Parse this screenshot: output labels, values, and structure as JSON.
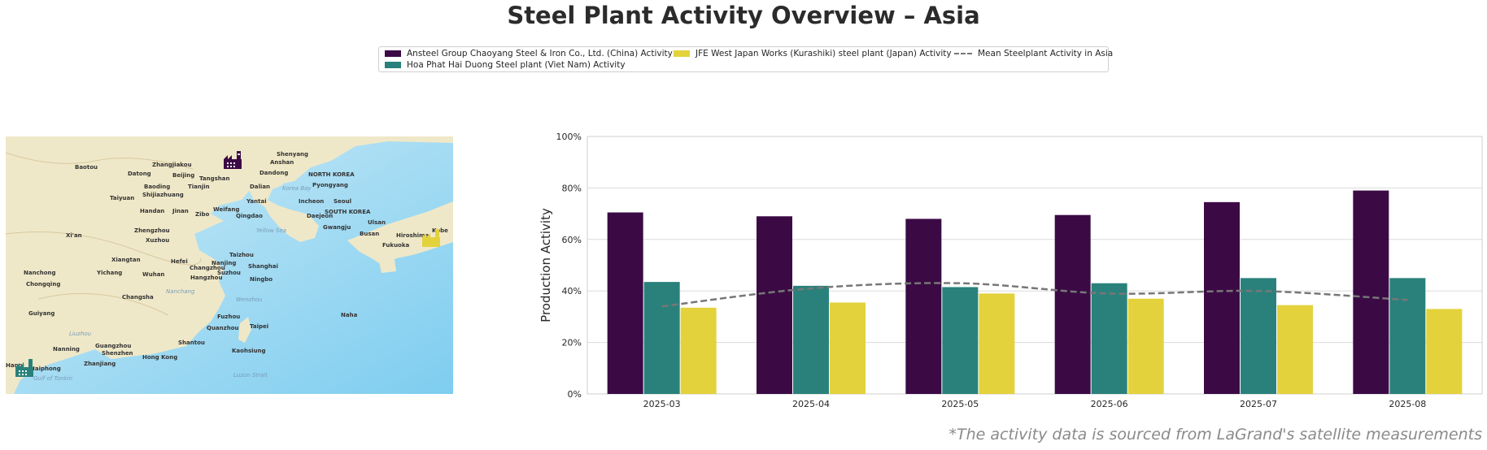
{
  "title": "Steel Plant Activity Overview – Asia",
  "legend": {
    "items": [
      {
        "label": "Ansteel Group Chaoyang Steel & Iron Co., Ltd. (China) Activity",
        "color": "#3b0a45",
        "kind": "bar"
      },
      {
        "label": "Hoa Phat Hai Duong Steel plant (Viet Nam) Activity",
        "color": "#2a817b",
        "kind": "bar"
      },
      {
        "label": "JFE West Japan Works (Kurashiki) steel plant (Japan) Activity",
        "color": "#e3d23c",
        "kind": "bar"
      },
      {
        "label": "Mean Steelplant Activity in Asia",
        "color": "#777777",
        "kind": "dashed-line"
      }
    ]
  },
  "map": {
    "labels": [
      "Baotou",
      "Zhangjiakou",
      "Datong",
      "Beijing",
      "Tangshan",
      "Shenyang",
      "Anshan",
      "Dandong",
      "NORTH KOREA",
      "Baoding",
      "Shijiazhuang",
      "Tianjin",
      "Dalian",
      "Pyongyang",
      "Taiyuan",
      "Korea Bay",
      "Yantai",
      "Incheon",
      "Seoul",
      "SOUTH KOREA",
      "Handan",
      "Jinan",
      "Zibo",
      "Weifang",
      "Qingdao",
      "Daejeon",
      "Ulsan",
      "Zhengzhou",
      "Yellow Sea",
      "Gwangju",
      "Busan",
      "Hiroshima",
      "Kobe",
      "Fukuoka",
      "Xi'an",
      "Xuzhou",
      "Taizhou",
      "Nanchong",
      "Xiangtan",
      "Hefei",
      "Nanjing",
      "Shanghai",
      "Chongqing",
      "Yichang",
      "Wuhan",
      "Changzhou",
      "Suzhou",
      "Hangzhou",
      "Ningbo",
      "Changsha",
      "Nanchang",
      "Wenzhou",
      "Guiyang",
      "Fuzhou",
      "Naha",
      "Liuzhou",
      "Quanzhou",
      "Taipei",
      "Nanning",
      "Guangzhou",
      "Shenzhen",
      "Shantou",
      "Kaohsiung",
      "Hanoi",
      "Haiphong",
      "Zhanjiang",
      "Hong Kong",
      "Gulf of Tonkin",
      "Luzon Strait"
    ],
    "markers": [
      {
        "name": "Ansteel Group Chaoyang Steel & Iron Co., Ltd.",
        "color": "#3b0a45"
      },
      {
        "name": "Hoa Phat Hai Duong Steel plant",
        "color": "#2a817b"
      },
      {
        "name": "JFE West Japan Works (Kurashiki) steel plant",
        "color": "#e3d23c"
      }
    ]
  },
  "chart_data": {
    "type": "bar",
    "categories": [
      "2025-03",
      "2025-04",
      "2025-05",
      "2025-06",
      "2025-07",
      "2025-08"
    ],
    "series": [
      {
        "name": "Ansteel Group Chaoyang Steel & Iron Co., Ltd. (China) Activity",
        "color": "#3b0a45",
        "values": [
          70.5,
          69,
          68,
          69.5,
          74.5,
          79
        ]
      },
      {
        "name": "Hoa Phat Hai Duong Steel plant (Viet Nam) Activity",
        "color": "#2a817b",
        "values": [
          43.5,
          42,
          41.5,
          43,
          45,
          45
        ]
      },
      {
        "name": "JFE West Japan Works (Kurashiki) steel plant (Japan) Activity",
        "color": "#e3d23c",
        "values": [
          33.5,
          35.5,
          39,
          37,
          34.5,
          33
        ]
      }
    ],
    "line": {
      "name": "Mean Steelplant Activity in Asia",
      "color": "#777777",
      "style": "dashed",
      "values": [
        34,
        41,
        43,
        39,
        40,
        36.5
      ]
    },
    "ylabel": "Production Activity",
    "xlabel": "",
    "ylim": [
      0,
      100
    ],
    "yticks": [
      0,
      20,
      40,
      60,
      80,
      100
    ],
    "ytick_labels": [
      "0%",
      "20%",
      "40%",
      "60%",
      "80%",
      "100%"
    ],
    "grid": "horizontal",
    "legend_position": "top-center"
  },
  "footnote": "*The activity data is sourced from LaGrand's satellite measurements"
}
